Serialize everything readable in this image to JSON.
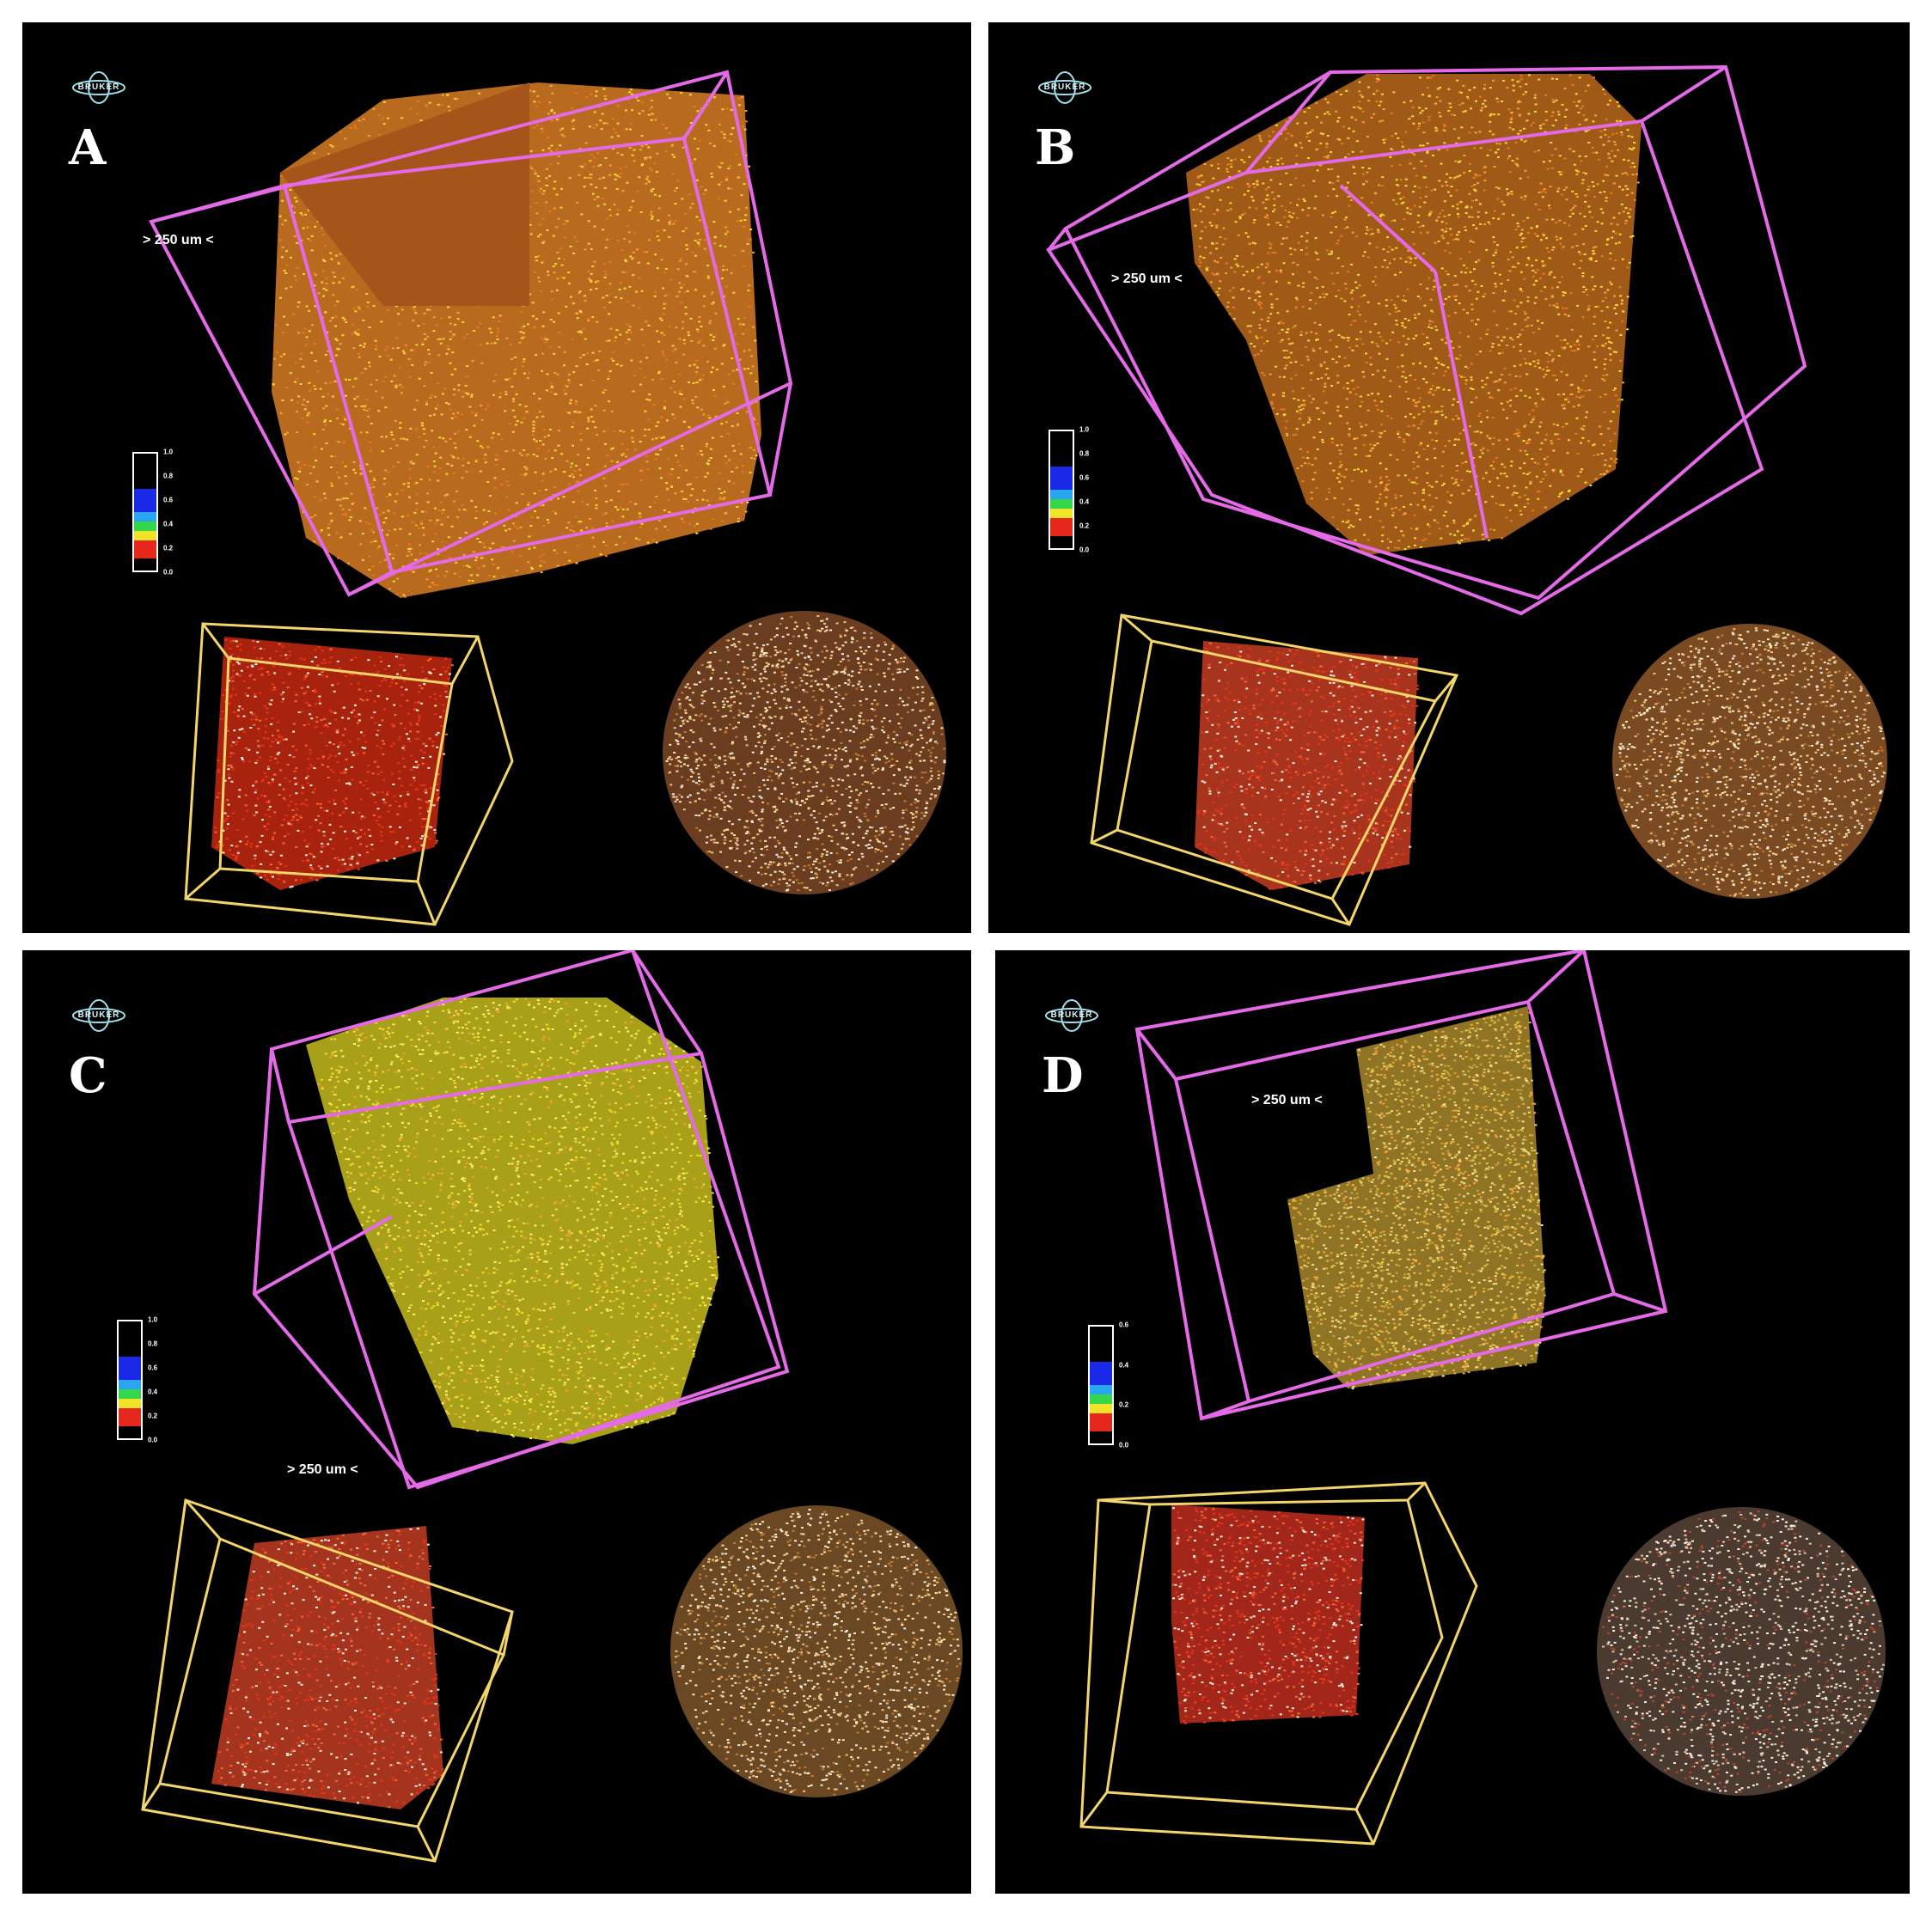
{
  "logo_text": "BRUKER",
  "colors": {
    "box_primary": "#e46ae8",
    "box_secondary": "#f3d56a",
    "particle_orange": "#f3a23a",
    "particle_yellow": "#f2dc33",
    "particle_red": "#e8351a",
    "particle_white": "#f6efdf"
  },
  "panels": [
    {
      "id": "A",
      "label": "A",
      "scale_label": "> 250 um <",
      "colorbar_ticks": [
        "1.0",
        "0.8",
        "0.6",
        "0.4",
        "0.2",
        "0.0"
      ]
    },
    {
      "id": "B",
      "label": "B",
      "scale_label": "> 250 um <",
      "colorbar_ticks": [
        "1.0",
        "0.8",
        "0.6",
        "0.4",
        "0.2",
        "0.0"
      ]
    },
    {
      "id": "C",
      "label": "C",
      "scale_label": "> 250 um <",
      "colorbar_ticks": [
        "1.0",
        "0.8",
        "0.6",
        "0.4",
        "0.2",
        "0.0"
      ]
    },
    {
      "id": "D",
      "label": "D",
      "scale_label": "> 250 um <",
      "colorbar_ticks": [
        "0.6",
        "0.4",
        "0.2",
        "0.0"
      ]
    }
  ]
}
